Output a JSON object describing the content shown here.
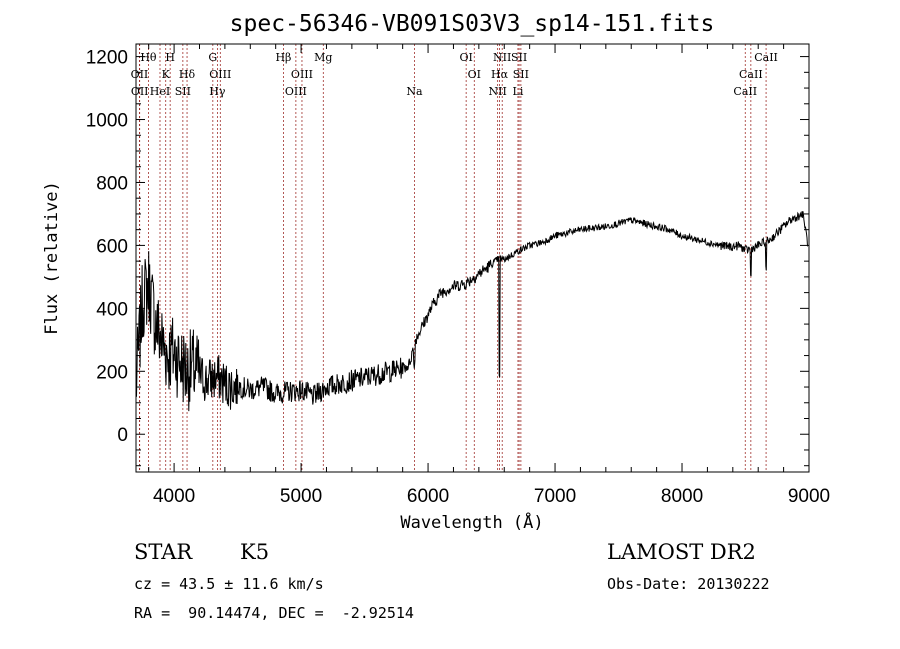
{
  "chart_data": {
    "type": "line",
    "title": "spec-56346-VB091S03V3_sp14-151.fits",
    "xlabel": "Wavelength (Å)",
    "ylabel": "Flux (relative)",
    "xlim": [
      3700,
      9000
    ],
    "ylim": [
      -120,
      1240
    ],
    "xticks": [
      4000,
      5000,
      6000,
      7000,
      8000,
      9000
    ],
    "yticks": [
      0,
      200,
      400,
      600,
      800,
      1000,
      1200
    ],
    "spectrum_envelope": {
      "x": [
        3700,
        3750,
        3800,
        3850,
        3900,
        3950,
        4000,
        4050,
        4100,
        4150,
        4200,
        4250,
        4300,
        4350,
        4400,
        4450,
        4500,
        4600,
        4700,
        4800,
        4900,
        5000,
        5100,
        5200,
        5300,
        5400,
        5500,
        5600,
        5700,
        5800,
        5850,
        5900,
        5950,
        6000,
        6050,
        6100,
        6200,
        6300,
        6400,
        6500,
        6560,
        6600,
        6700,
        6800,
        6900,
        7000,
        7100,
        7200,
        7300,
        7400,
        7500,
        7600,
        7700,
        7800,
        7900,
        8000,
        8100,
        8200,
        8300,
        8400,
        8450,
        8500,
        8550,
        8600,
        8650,
        8700,
        8750,
        8800,
        8850,
        8900,
        8950,
        8970,
        8990
      ],
      "y": [
        150,
        420,
        480,
        360,
        300,
        250,
        260,
        230,
        200,
        210,
        190,
        170,
        175,
        180,
        160,
        150,
        155,
        140,
        150,
        130,
        135,
        140,
        120,
        150,
        160,
        170,
        180,
        190,
        200,
        210,
        220,
        300,
        340,
        380,
        420,
        450,
        470,
        480,
        510,
        540,
        560,
        555,
        580,
        600,
        610,
        630,
        640,
        650,
        655,
        660,
        670,
        680,
        670,
        660,
        650,
        630,
        620,
        610,
        600,
        595,
        600,
        585,
        590,
        600,
        610,
        620,
        640,
        660,
        680,
        690,
        700,
        660,
        600
      ]
    },
    "spectral_lines": [
      {
        "label": "Hθ",
        "x": 3798,
        "row": 0
      },
      {
        "label": "OII",
        "x": 3727,
        "row": 1
      },
      {
        "label": "OII",
        "x": 3729,
        "row": 2
      },
      {
        "label": "H",
        "x": 3969,
        "row": 0
      },
      {
        "label": "K",
        "x": 3934,
        "row": 1
      },
      {
        "label": "HeI",
        "x": 3889,
        "row": 2
      },
      {
        "label": "Hδ",
        "x": 4102,
        "row": 1
      },
      {
        "label": "SII",
        "x": 4069,
        "row": 2
      },
      {
        "label": "G",
        "x": 4305,
        "row": 0
      },
      {
        "label": "OIII",
        "x": 4364,
        "row": 1
      },
      {
        "label": "Hγ",
        "x": 4341,
        "row": 2
      },
      {
        "label": "Hβ",
        "x": 4861,
        "row": 0
      },
      {
        "label": "OIII",
        "x": 5007,
        "row": 1
      },
      {
        "label": "OIII",
        "x": 4959,
        "row": 2
      },
      {
        "label": "Mg",
        "x": 5175,
        "row": 0
      },
      {
        "label": "Na",
        "x": 5893,
        "row": 2
      },
      {
        "label": "OI",
        "x": 6300,
        "row": 0
      },
      {
        "label": "OI",
        "x": 6364,
        "row": 1
      },
      {
        "label": "NII",
        "x": 6584,
        "row": 0
      },
      {
        "label": "Hα",
        "x": 6563,
        "row": 1
      },
      {
        "label": "NII",
        "x": 6548,
        "row": 2
      },
      {
        "label": "SII",
        "x": 6717,
        "row": 0
      },
      {
        "label": "SII",
        "x": 6731,
        "row": 1
      },
      {
        "label": "Li",
        "x": 6708,
        "row": 2
      },
      {
        "label": "CaII",
        "x": 8662,
        "row": 0
      },
      {
        "label": "CaII",
        "x": 8542,
        "row": 1
      },
      {
        "label": "CaII",
        "x": 8498,
        "row": 2
      }
    ],
    "grid": false
  },
  "info": {
    "object_class": "STAR",
    "subclass": "K5",
    "cz": "cz = 43.5 ± 11.6 km/s",
    "ra_dec": "RA =  90.14474, DEC =  -2.92514",
    "survey": "LAMOST DR2",
    "obs_date": "Obs-Date: 20130222"
  },
  "colors": {
    "line_marker": "#a0302c",
    "spectrum": "#000000",
    "axes": "#000000"
  }
}
